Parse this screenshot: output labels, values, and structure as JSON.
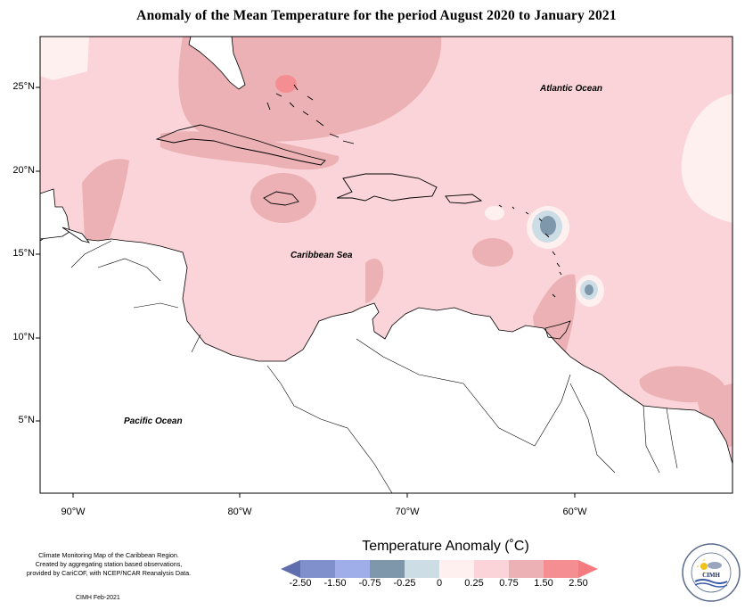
{
  "title": "Anomaly of the Mean Temperature for the period August 2020 to January 2021",
  "axes": {
    "y_ticks": [
      "25°N",
      "20°N",
      "15°N",
      "10°N",
      "5°N"
    ],
    "x_ticks": [
      "90°W",
      "80°W",
      "70°W",
      "60°W"
    ]
  },
  "labels": {
    "atlantic": "Atlantic Ocean",
    "caribbean": "Caribbean Sea",
    "pacific": "Pacific Ocean"
  },
  "legend": {
    "title": "Temperature Anomaly (˚C)",
    "values": [
      "-2.50",
      "-1.50",
      "-0.75",
      "-0.25",
      "0",
      "0.25",
      "0.75",
      "1.50",
      "2.50"
    ],
    "colors": [
      "#5f6fae",
      "#8090cc",
      "#9faee8",
      "#7f97aa",
      "#ccdde5",
      "#fff0f0",
      "#fad4d8",
      "#ebb1b4",
      "#f48e92",
      "#f47c80"
    ]
  },
  "credits": {
    "line1": "Climate Monitoring Map of the Caribbean Region.",
    "line2": "Created by aggregating station based observations,",
    "line3": "provided by CariCOF, with NCEP/NCAR Reanalysis Data.",
    "date": "CIMH Feb-2021"
  },
  "logo": {
    "text": "CIMH"
  },
  "colors": {
    "base_anomaly": "#fad4d8",
    "warm_patch": "#ebb1b4",
    "hot_spot": "#f48e92",
    "cool_patch": "#ccdde5",
    "cold_spot": "#7f97aa",
    "neutral": "#fff0f0"
  }
}
